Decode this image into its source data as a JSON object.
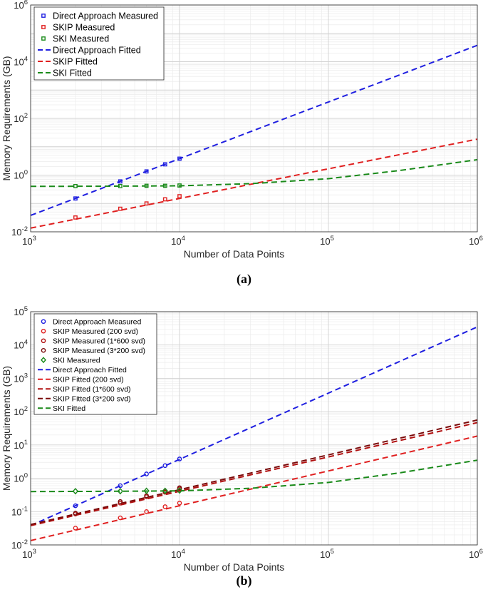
{
  "captions": [
    "(a)",
    "(b)"
  ],
  "chart_data": [
    {
      "type": "scatter",
      "xlabel": "Number of Data Points",
      "ylabel": "Memory Requirements (GB)",
      "xscale": "log",
      "yscale": "log",
      "xlim": [
        1000,
        1000000
      ],
      "ylim": [
        0.01,
        1000000
      ],
      "xticks": [
        {
          "base": "10",
          "exp": "3"
        },
        {
          "base": "10",
          "exp": "4"
        },
        {
          "base": "10",
          "exp": "5"
        },
        {
          "base": "10",
          "exp": "6"
        }
      ],
      "yticks": [
        {
          "base": "10",
          "exp": "-2"
        },
        {
          "base": "10",
          "exp": "0"
        },
        {
          "base": "10",
          "exp": "2"
        },
        {
          "base": "10",
          "exp": "4"
        },
        {
          "base": "10",
          "exp": "6"
        }
      ],
      "grid": true,
      "legend_position": "top-left",
      "series": [
        {
          "name": "Direct Approach Measured",
          "kind": "markers",
          "marker": "square",
          "color": "#1f1fe0",
          "x": [
            2000,
            4000,
            6000,
            8000,
            10000
          ],
          "y": [
            0.15,
            0.6,
            1.35,
            2.4,
            3.8
          ]
        },
        {
          "name": "SKIP Measured",
          "kind": "markers",
          "marker": "square",
          "color": "#e02020",
          "x": [
            2000,
            4000,
            6000,
            8000,
            10000
          ],
          "y": [
            0.032,
            0.065,
            0.1,
            0.14,
            0.18
          ]
        },
        {
          "name": "SKI Measured",
          "kind": "markers",
          "marker": "square",
          "color": "#1a8a1a",
          "x": [
            2000,
            4000,
            6000,
            8000,
            10000
          ],
          "y": [
            0.41,
            0.41,
            0.42,
            0.42,
            0.43
          ]
        },
        {
          "name": "Direct Approach Fitted",
          "kind": "line",
          "color": "#1f1fe0",
          "x": [
            1000,
            1000000
          ],
          "y": [
            0.038,
            38000
          ]
        },
        {
          "name": "SKIP Fitted",
          "kind": "line",
          "color": "#e02020",
          "x": [
            1000,
            1000000
          ],
          "y": [
            0.0135,
            18.5
          ]
        },
        {
          "name": "SKI Fitted",
          "kind": "line",
          "color": "#1a8a1a",
          "x": [
            1000,
            3000,
            10000,
            30000,
            100000,
            300000,
            1000000
          ],
          "y": [
            0.4,
            0.405,
            0.42,
            0.5,
            0.75,
            1.45,
            3.5
          ]
        }
      ]
    },
    {
      "type": "scatter",
      "xlabel": "Number of Data Points",
      "ylabel": "Memory Requirements (GB)",
      "xscale": "log",
      "yscale": "log",
      "xlim": [
        1000,
        1000000
      ],
      "ylim": [
        0.01,
        100000
      ],
      "xticks": [
        {
          "base": "10",
          "exp": "3"
        },
        {
          "base": "10",
          "exp": "4"
        },
        {
          "base": "10",
          "exp": "5"
        },
        {
          "base": "10",
          "exp": "6"
        }
      ],
      "yticks": [
        {
          "base": "10",
          "exp": "-2"
        },
        {
          "base": "10",
          "exp": "-1"
        },
        {
          "base": "10",
          "exp": "0"
        },
        {
          "base": "10",
          "exp": "1"
        },
        {
          "base": "10",
          "exp": "2"
        },
        {
          "base": "10",
          "exp": "3"
        },
        {
          "base": "10",
          "exp": "4"
        },
        {
          "base": "10",
          "exp": "5"
        }
      ],
      "grid": true,
      "legend_position": "top-left",
      "series": [
        {
          "name": "Direct Approach Measured",
          "kind": "markers",
          "marker": "circle",
          "color": "#1f1fe0",
          "x": [
            2000,
            4000,
            6000,
            8000,
            10000
          ],
          "y": [
            0.15,
            0.6,
            1.35,
            2.4,
            3.8
          ]
        },
        {
          "name": "SKIP Measured (200 svd)",
          "kind": "markers",
          "marker": "circle",
          "color": "#e02020",
          "x": [
            2000,
            4000,
            6000,
            8000,
            10000
          ],
          "y": [
            0.032,
            0.065,
            0.1,
            0.14,
            0.18
          ]
        },
        {
          "name": "SKIP Measured (1*600 svd)",
          "kind": "markers",
          "marker": "circle",
          "color": "#b01010",
          "x": [
            2000,
            4000,
            6000,
            8000,
            10000
          ],
          "y": [
            0.085,
            0.18,
            0.28,
            0.38,
            0.48
          ]
        },
        {
          "name": "SKIP Measured (3*200 svd)",
          "kind": "markers",
          "marker": "circle",
          "color": "#7a0a0a",
          "x": [
            2000,
            4000,
            6000,
            8000,
            10000
          ],
          "y": [
            0.09,
            0.2,
            0.3,
            0.41,
            0.52
          ]
        },
        {
          "name": "SKI Measured",
          "kind": "markers",
          "marker": "diamond",
          "color": "#1a8a1a",
          "x": [
            2000,
            4000,
            6000,
            8000,
            10000
          ],
          "y": [
            0.41,
            0.41,
            0.42,
            0.42,
            0.43
          ]
        },
        {
          "name": "Direct Approach Fitted",
          "kind": "line",
          "color": "#1f1fe0",
          "x": [
            1000,
            1000000
          ],
          "y": [
            0.038,
            35000
          ]
        },
        {
          "name": "SKIP Fitted (200 svd)",
          "kind": "line",
          "color": "#e02020",
          "x": [
            1000,
            1000000
          ],
          "y": [
            0.0135,
            18.5
          ]
        },
        {
          "name": "SKIP Fitted (1*600 svd)",
          "kind": "line",
          "color": "#b01010",
          "x": [
            1000,
            1000000
          ],
          "y": [
            0.038,
            47
          ]
        },
        {
          "name": "SKIP Fitted (3*200 svd)",
          "kind": "line",
          "color": "#7a0a0a",
          "x": [
            1000,
            1000000
          ],
          "y": [
            0.041,
            56
          ]
        },
        {
          "name": "SKI Fitted",
          "kind": "line",
          "color": "#1a8a1a",
          "x": [
            1000,
            3000,
            10000,
            30000,
            100000,
            300000,
            1000000
          ],
          "y": [
            0.4,
            0.405,
            0.42,
            0.5,
            0.75,
            1.45,
            3.5
          ]
        }
      ]
    }
  ]
}
